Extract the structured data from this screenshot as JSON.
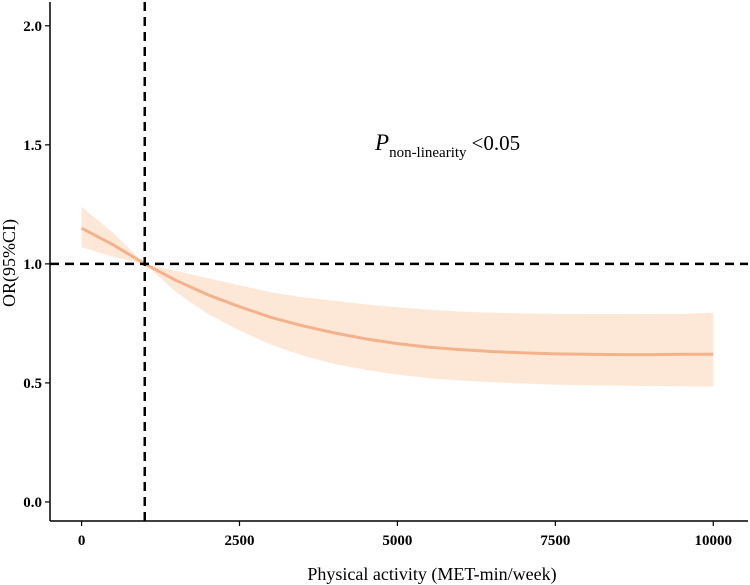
{
  "chart_data": {
    "type": "line",
    "title": "",
    "xlabel": "Physical activity (MET-min/week)",
    "ylabel": "OR(95%CI)",
    "xlim": [
      -500,
      10550
    ],
    "ylim": [
      -0.08,
      2.1
    ],
    "xticks": [
      0,
      2500,
      5000,
      7500,
      10000
    ],
    "xtick_labels": [
      "0",
      "2500",
      "5000",
      "7500",
      "10000"
    ],
    "yticks": [
      0.0,
      0.5,
      1.0,
      1.5,
      2.0
    ],
    "ytick_labels": [
      "0.0",
      "0.5",
      "1.0",
      "1.5",
      "2.0"
    ],
    "grid": false,
    "reference_lines": {
      "x": 1000,
      "y": 1.0
    },
    "annotation": {
      "italic": "P",
      "subscript": "non-linearity",
      "text": "<0.05"
    },
    "series": [
      {
        "name": "OR",
        "x": [
          0,
          500,
          1000,
          1500,
          2000,
          2500,
          3000,
          3500,
          4000,
          4500,
          5000,
          5500,
          6000,
          6500,
          7000,
          7500,
          8000,
          8500,
          9000,
          9500,
          10000
        ],
        "y": [
          1.15,
          1.08,
          1.0,
          0.93,
          0.87,
          0.82,
          0.775,
          0.74,
          0.71,
          0.685,
          0.665,
          0.65,
          0.64,
          0.632,
          0.626,
          0.622,
          0.62,
          0.619,
          0.619,
          0.62,
          0.62
        ],
        "lower": [
          1.07,
          1.03,
          1.0,
          0.88,
          0.79,
          0.72,
          0.66,
          0.615,
          0.58,
          0.555,
          0.535,
          0.52,
          0.51,
          0.503,
          0.497,
          0.493,
          0.49,
          0.488,
          0.487,
          0.486,
          0.485
        ],
        "upper": [
          1.24,
          1.13,
          1.0,
          0.97,
          0.94,
          0.91,
          0.88,
          0.86,
          0.845,
          0.83,
          0.818,
          0.808,
          0.8,
          0.795,
          0.792,
          0.79,
          0.789,
          0.789,
          0.79,
          0.79,
          0.795
        ],
        "line_color": "#F4B28C",
        "band_color": "#FDE8D8"
      }
    ]
  }
}
